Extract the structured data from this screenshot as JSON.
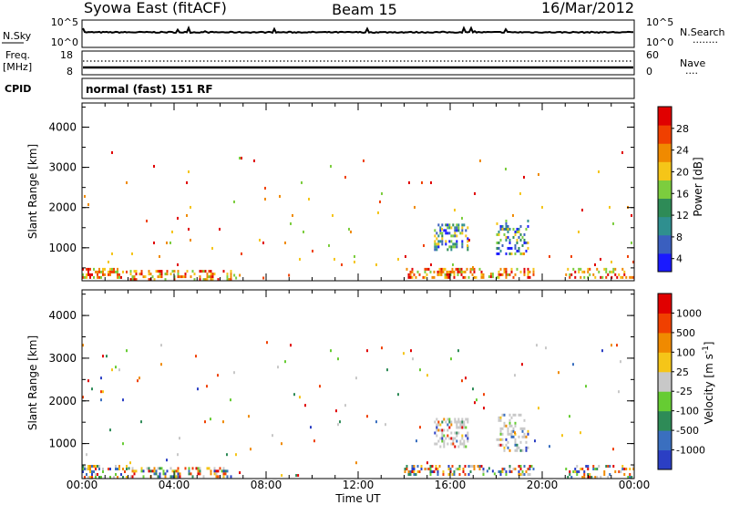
{
  "header": {
    "station": "Syowa East (fitACF)",
    "beam": "Beam 15",
    "date": "16/Mar/2012"
  },
  "noise_panel": {
    "left_label": "N.Sky",
    "right_label": "N.Search",
    "right_dots": "........",
    "left_ticks": [
      "10^5",
      "10^0"
    ],
    "right_ticks": [
      "10^5",
      "10^0"
    ]
  },
  "freq_panel": {
    "left_label": "Freq.",
    "left_unit": "[MHz]",
    "right_label": "Nave",
    "right_dots": "....",
    "left_ticks": [
      "18",
      "8"
    ],
    "right_ticks": [
      "60",
      "0"
    ]
  },
  "cpid": {
    "label": "CPID",
    "text": "normal (fast) 151 RF"
  },
  "colors": {
    "power": [
      "#1a1aff",
      "#3a5fbf",
      "#2f8f8f",
      "#2e8b57",
      "#7ccd3e",
      "#f5c518",
      "#f08a00",
      "#f04000",
      "#e00000"
    ],
    "velocity": [
      "#2b3fc4",
      "#3a6fbf",
      "#2e8b57",
      "#66cc33",
      "#c8c8c8",
      "#f5c518",
      "#f08a00",
      "#f04000",
      "#e00000"
    ]
  },
  "chart_data": [
    {
      "type": "heatmap",
      "parameter": "power",
      "ylabel": "Slant Range [km]",
      "ylim": [
        180,
        4600
      ],
      "yticks": [
        "4000",
        "3000",
        "2000",
        "1000"
      ],
      "ytick_values": [
        4000,
        3000,
        2000,
        1000
      ],
      "colorbar_label": "Power [dB]",
      "colorbar_ticks": [
        "28",
        "24",
        "20",
        "16",
        "12",
        "8",
        "4"
      ],
      "colorbar_range": [
        0,
        30
      ]
    },
    {
      "type": "heatmap",
      "parameter": "velocity",
      "ylabel": "Slant Range [km]",
      "ylim": [
        180,
        4600
      ],
      "yticks": [
        "4000",
        "3000",
        "2000",
        "1000"
      ],
      "ytick_values": [
        4000,
        3000,
        2000,
        1000
      ],
      "colorbar_label": "Velocity [m s^-1]",
      "colorbar_ticks": [
        "1000",
        "500",
        "100",
        "25",
        "-25",
        "-100",
        "-500",
        "-1000"
      ]
    }
  ],
  "time_axis": {
    "xlabel": "Time UT",
    "tick_labels": [
      "00:00",
      "04:00",
      "08:00",
      "12:00",
      "16:00",
      "20:00",
      "00:00"
    ],
    "tick_hours": [
      0,
      4,
      8,
      12,
      16,
      20,
      24
    ],
    "range_hours": [
      0,
      24
    ]
  }
}
